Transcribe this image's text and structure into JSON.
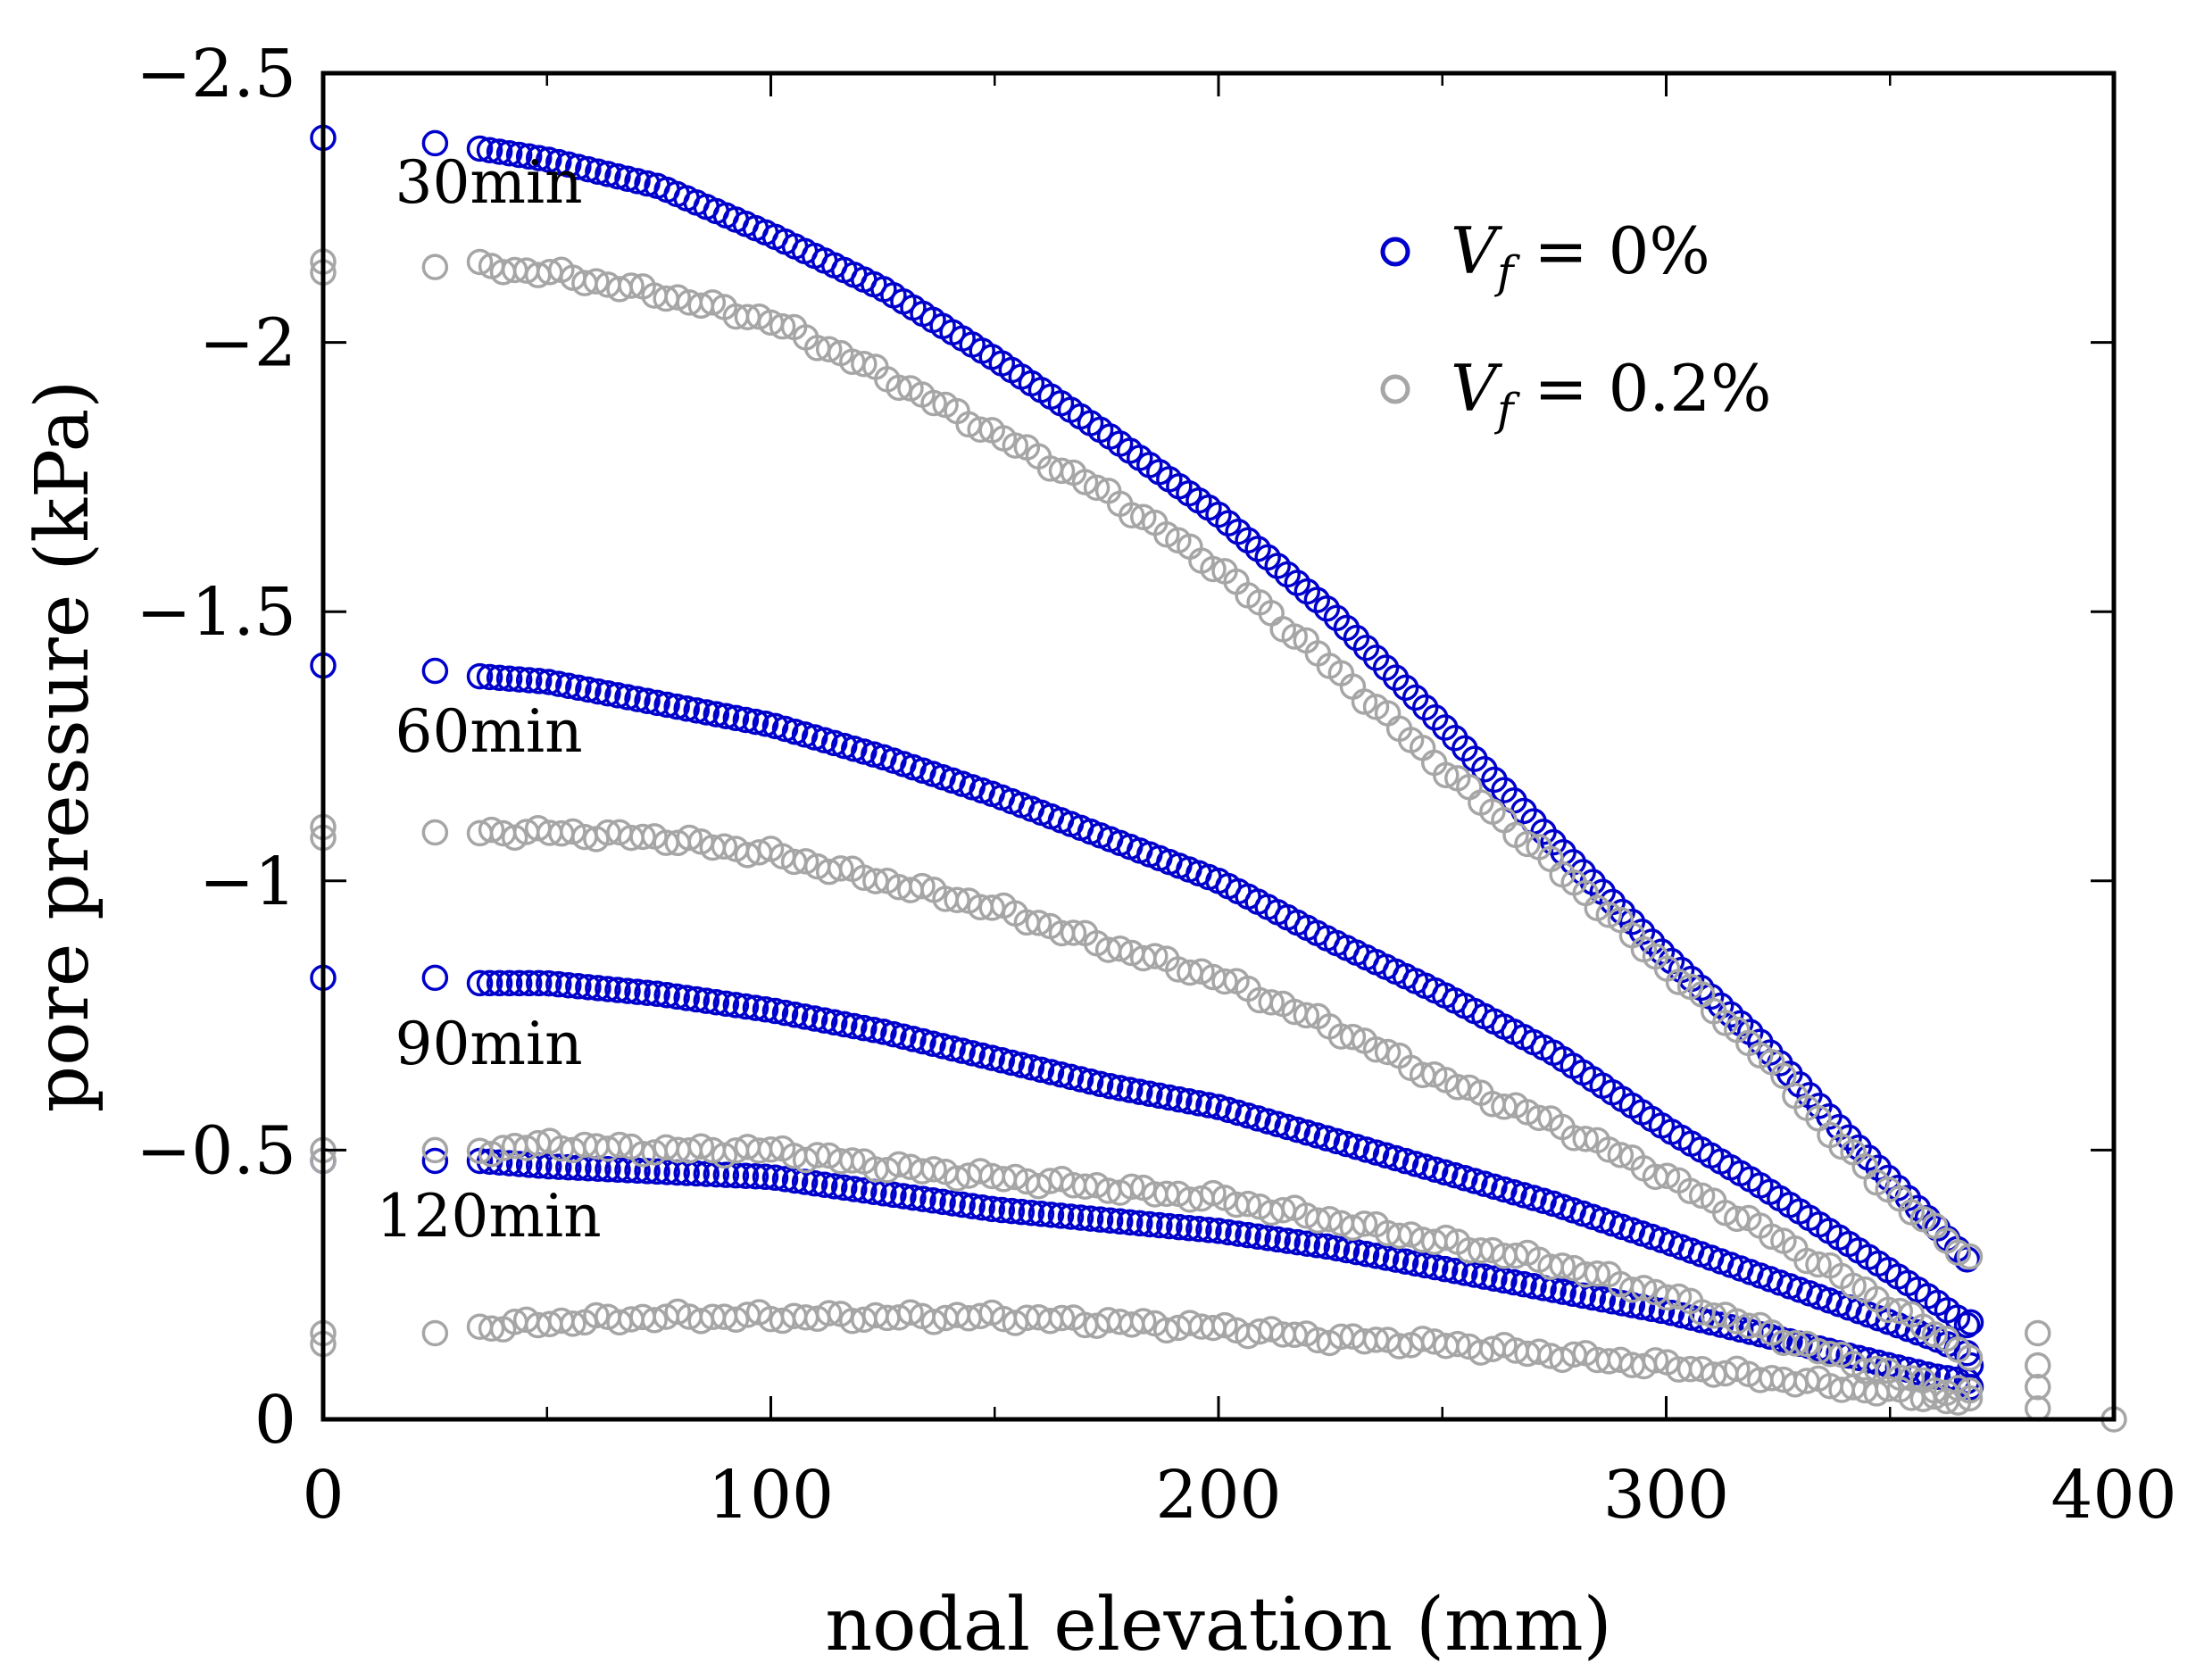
{
  "chart_data": {
    "type": "scatter",
    "title": "",
    "xlabel": "nodal elevation (mm)",
    "ylabel": "pore pressure (kPa)",
    "xlim": [
      0,
      400
    ],
    "ylim": [
      0,
      -2.5
    ],
    "y_inverted": true,
    "xticks": [
      0,
      100,
      200,
      300,
      400
    ],
    "xtick_labels": [
      "0",
      "100",
      "200",
      "300",
      "400"
    ],
    "yticks": [
      0,
      -0.5,
      -1,
      -1.5,
      -2,
      -2.5
    ],
    "ytick_labels": [
      "0",
      "−0.5",
      "−1",
      "−1.5",
      "−2",
      "−2.5"
    ],
    "grid": false,
    "legend_position": "top-right",
    "legend": [
      {
        "name": "Vf = 0%",
        "var": "V",
        "sub": "f",
        "rest": " = 0%",
        "color": "#0000cc"
      },
      {
        "name": "Vf = 0.2%",
        "var": "V",
        "sub": "f",
        "rest": " = 0.2%",
        "color": "#a6a6a6"
      }
    ],
    "annotations": [
      {
        "text": "30min",
        "x": 37,
        "y": -2.26
      },
      {
        "text": "60min",
        "x": 37,
        "y": -1.24
      },
      {
        "text": "90min",
        "x": 37,
        "y": -0.66
      },
      {
        "text": "120min",
        "x": 37,
        "y": -0.34
      }
    ],
    "series": [
      {
        "name": "Vf = 0% (30 min)",
        "color": "#0000cc",
        "edge_points": [
          {
            "x": 0,
            "y": -2.38
          },
          {
            "x": 25,
            "y": -2.37
          }
        ],
        "curve": [
          [
            35,
            -2.36
          ],
          [
            50,
            -2.34
          ],
          [
            75,
            -2.29
          ],
          [
            100,
            -2.2
          ],
          [
            125,
            -2.1
          ],
          [
            150,
            -1.97
          ],
          [
            175,
            -1.83
          ],
          [
            200,
            -1.68
          ],
          [
            225,
            -1.5
          ],
          [
            250,
            -1.29
          ],
          [
            275,
            -1.07
          ],
          [
            300,
            -0.86
          ],
          [
            320,
            -0.71
          ],
          [
            340,
            -0.53
          ],
          [
            360,
            -0.36
          ],
          [
            368,
            -0.29
          ]
        ],
        "step": 2.2,
        "end_points": [
          {
            "x": 368,
            "y": -0.18
          },
          {
            "x": 368,
            "y": -0.1
          },
          {
            "x": 368,
            "y": -0.06
          }
        ]
      },
      {
        "name": "Vf = 0% (60 min)",
        "color": "#0000cc",
        "edge_points": [
          {
            "x": 0,
            "y": -1.4
          },
          {
            "x": 25,
            "y": -1.39
          }
        ],
        "curve": [
          [
            35,
            -1.38
          ],
          [
            50,
            -1.37
          ],
          [
            75,
            -1.33
          ],
          [
            100,
            -1.29
          ],
          [
            125,
            -1.23
          ],
          [
            150,
            -1.16
          ],
          [
            175,
            -1.08
          ],
          [
            200,
            -1.0
          ],
          [
            225,
            -0.89
          ],
          [
            250,
            -0.79
          ],
          [
            275,
            -0.68
          ],
          [
            300,
            -0.54
          ],
          [
            320,
            -0.44
          ],
          [
            340,
            -0.33
          ],
          [
            360,
            -0.22
          ],
          [
            368,
            -0.17
          ]
        ],
        "step": 2.2,
        "end_points": []
      },
      {
        "name": "Vf = 0% (90 min)",
        "color": "#0000cc",
        "edge_points": [
          {
            "x": 0,
            "y": -0.82
          },
          {
            "x": 25,
            "y": -0.82
          }
        ],
        "curve": [
          [
            35,
            -0.81
          ],
          [
            50,
            -0.81
          ],
          [
            75,
            -0.79
          ],
          [
            100,
            -0.76
          ],
          [
            125,
            -0.72
          ],
          [
            150,
            -0.67
          ],
          [
            175,
            -0.62
          ],
          [
            200,
            -0.58
          ],
          [
            225,
            -0.52
          ],
          [
            250,
            -0.46
          ],
          [
            275,
            -0.4
          ],
          [
            300,
            -0.33
          ],
          [
            320,
            -0.27
          ],
          [
            340,
            -0.21
          ],
          [
            360,
            -0.15
          ],
          [
            368,
            -0.12
          ]
        ],
        "step": 2.2,
        "end_points": []
      },
      {
        "name": "Vf = 0% (120 min)",
        "color": "#0000cc",
        "edge_points": [
          {
            "x": 0,
            "y": -0.48
          },
          {
            "x": 25,
            "y": -0.48
          }
        ],
        "curve": [
          [
            35,
            -0.48
          ],
          [
            50,
            -0.47
          ],
          [
            75,
            -0.46
          ],
          [
            100,
            -0.45
          ],
          [
            125,
            -0.42
          ],
          [
            150,
            -0.39
          ],
          [
            175,
            -0.37
          ],
          [
            200,
            -0.35
          ],
          [
            225,
            -0.32
          ],
          [
            250,
            -0.28
          ],
          [
            275,
            -0.24
          ],
          [
            300,
            -0.2
          ],
          [
            320,
            -0.16
          ],
          [
            340,
            -0.12
          ],
          [
            360,
            -0.08
          ],
          [
            368,
            -0.07
          ]
        ],
        "step": 2.2,
        "end_points": []
      },
      {
        "name": "Vf = 0.2% (30 min)",
        "color": "#a6a6a6",
        "edge_points": [
          {
            "x": 0,
            "y": -2.15
          },
          {
            "x": 0,
            "y": -2.13
          },
          {
            "x": 25,
            "y": -2.14
          }
        ],
        "curve": [
          [
            35,
            -2.14
          ],
          [
            50,
            -2.13
          ],
          [
            75,
            -2.09
          ],
          [
            100,
            -2.04
          ],
          [
            125,
            -1.94
          ],
          [
            150,
            -1.83
          ],
          [
            175,
            -1.72
          ],
          [
            200,
            -1.58
          ],
          [
            225,
            -1.4
          ],
          [
            250,
            -1.21
          ],
          [
            275,
            -1.03
          ],
          [
            300,
            -0.84
          ],
          [
            320,
            -0.69
          ],
          [
            340,
            -0.5
          ],
          [
            360,
            -0.35
          ],
          [
            368,
            -0.3
          ]
        ],
        "step": 2.6,
        "end_points": [
          {
            "x": 383,
            "y": -0.16
          },
          {
            "x": 383,
            "y": -0.1
          },
          {
            "x": 383,
            "y": -0.06
          },
          {
            "x": 383,
            "y": -0.02
          },
          {
            "x": 400,
            "y": 0.0
          }
        ]
      },
      {
        "name": "Vf = 0.2% (60 min)",
        "color": "#a6a6a6",
        "edge_points": [
          {
            "x": 0,
            "y": -1.1
          },
          {
            "x": 0,
            "y": -1.08
          },
          {
            "x": 25,
            "y": -1.09
          }
        ],
        "curve": [
          [
            35,
            -1.09
          ],
          [
            50,
            -1.09
          ],
          [
            75,
            -1.08
          ],
          [
            100,
            -1.05
          ],
          [
            125,
            -1.0
          ],
          [
            150,
            -0.95
          ],
          [
            175,
            -0.88
          ],
          [
            200,
            -0.82
          ],
          [
            225,
            -0.73
          ],
          [
            250,
            -0.63
          ],
          [
            275,
            -0.55
          ],
          [
            300,
            -0.45
          ],
          [
            320,
            -0.36
          ],
          [
            340,
            -0.26
          ],
          [
            360,
            -0.16
          ],
          [
            368,
            -0.12
          ]
        ],
        "step": 2.6,
        "end_points": []
      },
      {
        "name": "Vf = 0.2% (90 min)",
        "color": "#a6a6a6",
        "edge_points": [
          {
            "x": 0,
            "y": -0.5
          },
          {
            "x": 0,
            "y": -0.48
          },
          {
            "x": 25,
            "y": -0.5
          }
        ],
        "curve": [
          [
            35,
            -0.5
          ],
          [
            50,
            -0.51
          ],
          [
            75,
            -0.5
          ],
          [
            100,
            -0.5
          ],
          [
            125,
            -0.47
          ],
          [
            150,
            -0.45
          ],
          [
            175,
            -0.43
          ],
          [
            200,
            -0.41
          ],
          [
            225,
            -0.37
          ],
          [
            250,
            -0.33
          ],
          [
            275,
            -0.29
          ],
          [
            300,
            -0.23
          ],
          [
            320,
            -0.17
          ],
          [
            340,
            -0.11
          ],
          [
            360,
            -0.06
          ],
          [
            368,
            -0.05
          ]
        ],
        "step": 2.6,
        "end_points": []
      },
      {
        "name": "Vf = 0.2% (120 min)",
        "color": "#a6a6a6",
        "edge_points": [
          {
            "x": 0,
            "y": -0.16
          },
          {
            "x": 0,
            "y": -0.14
          },
          {
            "x": 25,
            "y": -0.16
          }
        ],
        "curve": [
          [
            35,
            -0.17
          ],
          [
            50,
            -0.18
          ],
          [
            75,
            -0.19
          ],
          [
            100,
            -0.19
          ],
          [
            125,
            -0.19
          ],
          [
            150,
            -0.19
          ],
          [
            175,
            -0.18
          ],
          [
            200,
            -0.17
          ],
          [
            225,
            -0.15
          ],
          [
            250,
            -0.14
          ],
          [
            275,
            -0.12
          ],
          [
            300,
            -0.1
          ],
          [
            320,
            -0.08
          ],
          [
            340,
            -0.06
          ],
          [
            360,
            -0.04
          ],
          [
            368,
            -0.03
          ]
        ],
        "step": 2.6,
        "end_points": []
      }
    ]
  }
}
